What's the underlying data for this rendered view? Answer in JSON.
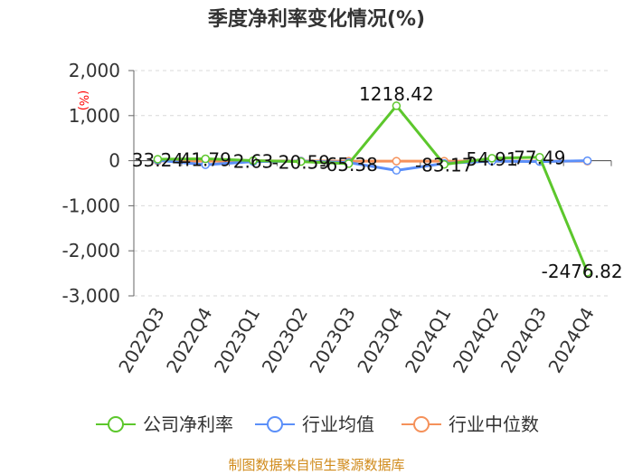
{
  "chart_data": {
    "type": "line",
    "title": "季度净利率变化情况(%)",
    "ylabel": "(%)",
    "categories": [
      "2022Q3",
      "2022Q4",
      "2023Q1",
      "2023Q2",
      "2023Q3",
      "2023Q4",
      "2024Q1",
      "2024Q2",
      "2024Q3",
      "2024Q4"
    ],
    "yticks": [
      "2,000",
      "1,000",
      "0",
      "-1,000",
      "-2,000",
      "-3,000"
    ],
    "ylim": [
      -3000,
      2000
    ],
    "grid": true,
    "legend_position": "bottom",
    "series": [
      {
        "name": "公司净利率",
        "color": "#5cc72c",
        "values": [
          33.24,
          41.79,
          2.63,
          -20.59,
          -65.38,
          1218.42,
          -83.17,
          54.91,
          77.49,
          -2476.82
        ],
        "labels": [
          "33.24",
          "41.79",
          "2.63",
          "-20.59",
          "-65.38",
          "1218.42",
          "-83.17",
          "54.91",
          "77.49",
          "-2476.82"
        ]
      },
      {
        "name": "行业均值",
        "color": "#5b8ff9",
        "values": [
          10,
          -90,
          -20,
          -10,
          -40,
          -215,
          -60,
          -10,
          -20,
          0
        ]
      },
      {
        "name": "行业中位数",
        "color": "#f5915a",
        "values": [
          -5,
          -10,
          -5,
          -5,
          -10,
          -10,
          -10,
          -10,
          -10,
          -10
        ]
      }
    ],
    "source": "制图数据来自恒生聚源数据库"
  }
}
